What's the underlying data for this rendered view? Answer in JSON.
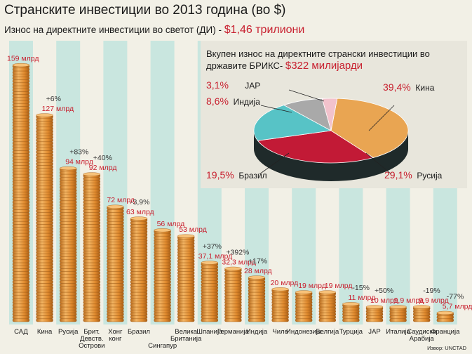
{
  "header": {
    "title": "Странските инвестиции во 2013 година (во $)",
    "subtitle_prefix": "Износ на директните инвестиции во светот (ДИ) -",
    "subtitle_highlight": "$1,46 трилиони"
  },
  "source": "Извор: UNCTAD",
  "colors": {
    "bar_band": "#c9e6df",
    "coin": "#e89a3c",
    "coin_dark": "#b86a1c",
    "value_text": "#c8202f",
    "background": "#f2f0e6"
  },
  "chart_data": [
    {
      "type": "bar",
      "categories": [
        [
          "САД"
        ],
        [
          "Кина"
        ],
        [
          "Русија"
        ],
        [
          "Брит.",
          "Девств.",
          "Острови"
        ],
        [
          "Хонг",
          "конг"
        ],
        [
          "Бразил"
        ],
        [
          "Сингапур"
        ],
        [
          "Велика",
          "Британија"
        ],
        [
          "Шпанија"
        ],
        [
          "Германија"
        ],
        [
          "Индија"
        ],
        [
          "Чиле"
        ],
        [
          "Индонезија"
        ],
        [
          "Белгија"
        ],
        [
          "Турција"
        ],
        [
          "ЈАР"
        ],
        [
          "Италија"
        ],
        [
          "Саудиска",
          "Арабија"
        ],
        [
          "Франција"
        ]
      ],
      "values": [
        159,
        127,
        94,
        92,
        72,
        63,
        56,
        53,
        37.1,
        32.3,
        28,
        20,
        19,
        19,
        11,
        10,
        9.9,
        9.9,
        5.7
      ],
      "value_labels": [
        "159 млрд",
        "127 млрд",
        "94 млрд",
        "92 млрд",
        "72 млрд",
        "63 млрд",
        "56 млрд",
        "53 млрд",
        "37,1 млрд",
        "32,3 млрд",
        "28 млрд",
        "20 млрд",
        "19 млрд",
        "19 млрд",
        "11 млрд",
        "10 млрд",
        "9,9 млрд",
        "9,9 млрд",
        "5,7 млрд"
      ],
      "changes": [
        "",
        "+6%",
        "+83%",
        "+40%",
        "",
        "-3,9%",
        "",
        "",
        "+37%",
        "+392%",
        "+17%",
        "",
        "",
        "",
        "-15%",
        "+50%",
        "",
        "-19%",
        "-77%"
      ],
      "unit": "млрд $"
    },
    {
      "type": "pie",
      "title_prefix": "Вкупен износ на директните странски инвестиции во државите БРИКС-",
      "title_highlight": "$322 милијарди",
      "labels": [
        "Кина",
        "Русија",
        "Бразил",
        "Индија",
        "ЈАР"
      ],
      "values": [
        39.4,
        29.1,
        19.5,
        8.6,
        3.1
      ],
      "value_labels": [
        "39,4%",
        "29,1%",
        "19,5%",
        "8,6%",
        "3,1%"
      ],
      "colors": [
        "#e9a552",
        "#c21a36",
        "#57c3c6",
        "#a9a9a9",
        "#f2c2cc"
      ]
    }
  ]
}
